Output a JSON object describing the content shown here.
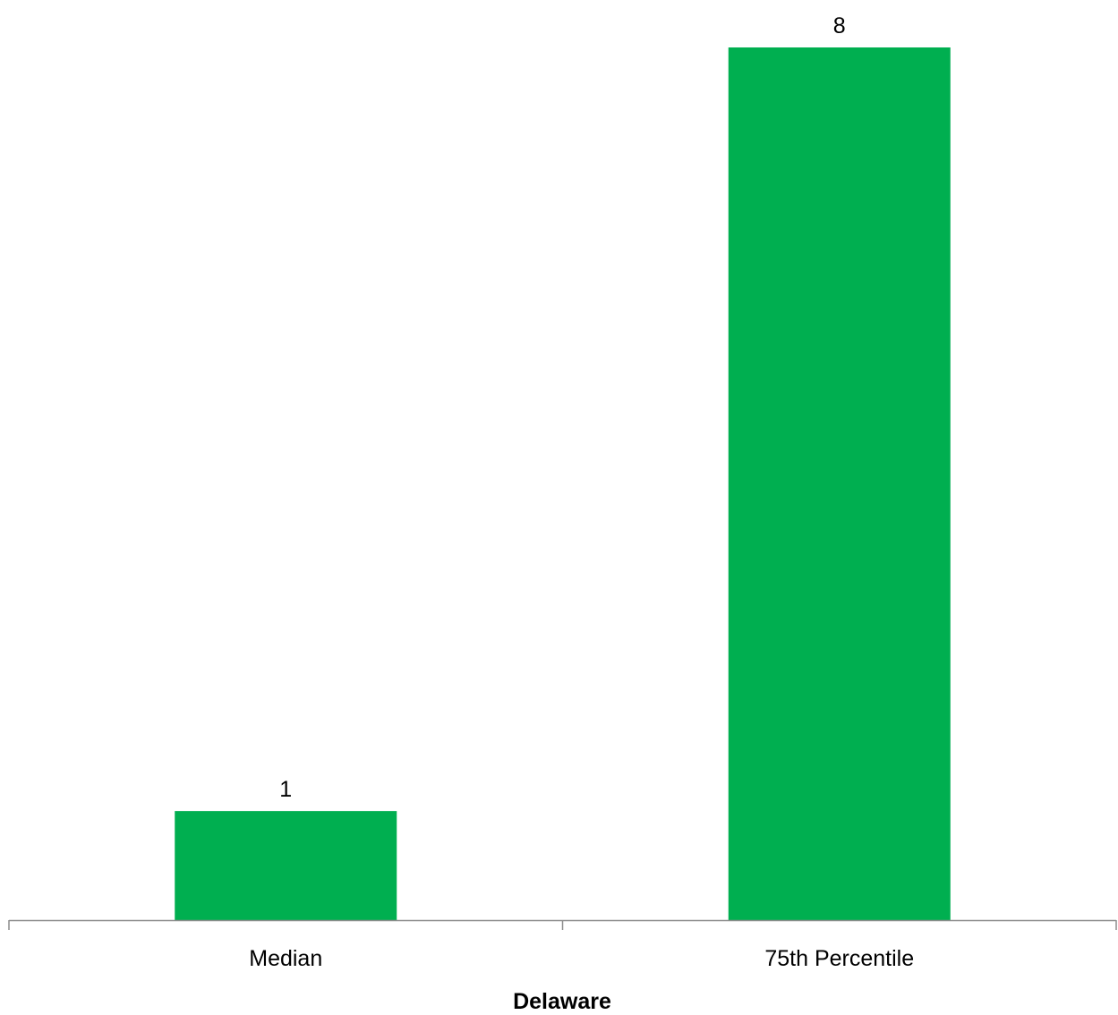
{
  "chart_data": {
    "type": "bar",
    "categories": [
      "Median",
      "75th Percentile"
    ],
    "values": [
      1,
      8
    ],
    "data_labels": [
      "1",
      "8"
    ],
    "title": "",
    "xlabel": "Delaware",
    "ylabel": "",
    "ylim": [
      0,
      8
    ],
    "grid": false,
    "legend": "none",
    "bar_color": "#00AF50",
    "axis_color": "#8C8C8C"
  }
}
